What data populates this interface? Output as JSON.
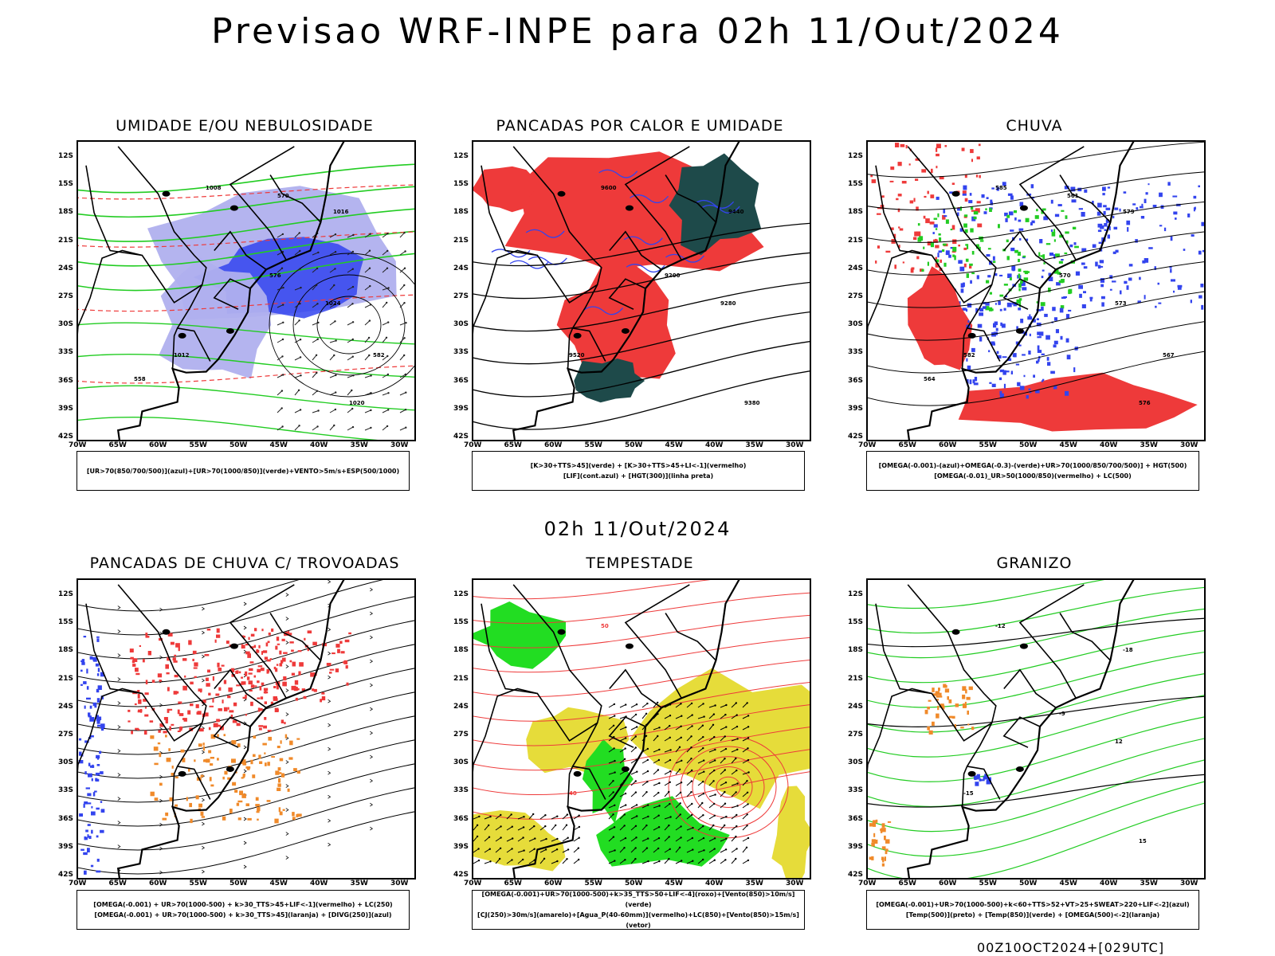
{
  "title": "Previsao WRF-INPE  para 02h 11/Out/2024",
  "mid_title": "02h 11/Out/2024",
  "footer": "00Z10OCT2024+[029UTC]",
  "lat_labels": [
    "12S",
    "15S",
    "18S",
    "21S",
    "24S",
    "27S",
    "30S",
    "33S",
    "36S",
    "39S",
    "42S"
  ],
  "lon_labels": [
    "70W",
    "65W",
    "60W",
    "55W",
    "50W",
    "45W",
    "40W",
    "35W",
    "30W"
  ],
  "colors": {
    "blue": "#3344ee",
    "light_blue": "#b0b0ee",
    "green": "#22cc22",
    "red": "#ee3a3a",
    "dark_teal": "#1e4a4a",
    "orange": "#f08a2a",
    "yellow": "#e6dc3a",
    "bright_green": "#22dd22"
  },
  "panels": [
    {
      "title": "UMIDADE E/OU NEBULOSIDADE",
      "legend": [
        "[UR>70(850/700/500)](azul)+[UR>70(1000/850)](verde)+VENTO>5m/s+ESP(500/1000)"
      ],
      "contour_labels": [
        "1008",
        "1012",
        "1016",
        "1020",
        "1024",
        "576",
        "582",
        "558",
        "570"
      ]
    },
    {
      "title": "PANCADAS POR CALOR E UMIDADE",
      "legend": [
        "[K>30+TTS>45](verde) + [K>30+TTS>45+LI<-1](vermelho)",
        "[LIF](cont.azul) + [HGT(300)](linha preta)"
      ],
      "contour_labels": [
        "9600",
        "9520",
        "9440",
        "9380",
        "9280",
        "9200"
      ]
    },
    {
      "title": "CHUVA",
      "legend": [
        "[OMEGA(-0.001)-(azul)+OMEGA(-0.3)-(verde)+UR>70(1000/850/700/500)] + HGT(500)",
        "[OMEGA(-0.01)_UR>50(1000/850)(vermelho) + LC(500)"
      ],
      "contour_labels": [
        "585",
        "582",
        "579",
        "576",
        "573",
        "570",
        "567",
        "564",
        "561"
      ]
    },
    {
      "title": "PANCADAS DE CHUVA C/ TROVOADAS",
      "legend": [
        "[OMEGA(-0.001) + UR>70(1000-500) + k>30_TTS>45+LIF<-1](vermelho) + LC(250)",
        "[OMEGA(-0.001) + UR>70(1000-500) + k>30_TTS>45](laranja) + [DIVG(250)](azul)"
      ],
      "contour_labels": []
    },
    {
      "title": "TEMPESTADE",
      "legend": [
        "[OMEGA(-0.001)+UR>70(1000-500)+k>35_TTS>50+LIF<-4](roxo)+[Vento(850)>10m/s](verde)",
        "[CJ(250)>30m/s](amarelo)+[Agua_P(40-60mm)](vermelho)+LC(850)+[Vento(850)>15m/s](vetor)"
      ],
      "contour_labels": [
        "50",
        "40"
      ]
    },
    {
      "title": "GRANIZO",
      "legend": [
        "[OMEGA(-0.001)+UR>70(1000-500)+k<60+TTS>52+VT>25+SWEAT>220+LIF<-2](azul)",
        "[Temp(500)](preto) + [Temp(850)](verde) + [OMEGA(500)<-2](laranja)"
      ],
      "contour_labels": [
        "-12",
        "-15",
        "-18",
        "15",
        "12",
        "-9"
      ]
    }
  ]
}
